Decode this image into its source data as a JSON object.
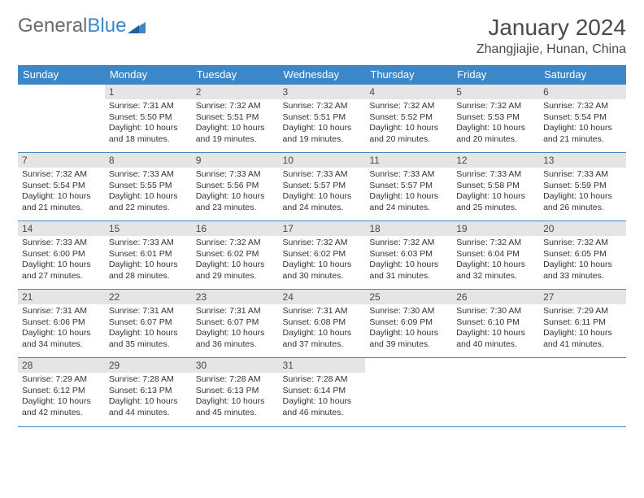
{
  "logo": {
    "word1": "General",
    "word2": "Blue"
  },
  "title": "January 2024",
  "location": "Zhangjiajie, Hunan, China",
  "day_names": [
    "Sunday",
    "Monday",
    "Tuesday",
    "Wednesday",
    "Thursday",
    "Friday",
    "Saturday"
  ],
  "colors": {
    "accent": "#3b87c8",
    "daynum_bg": "#e5e5e5",
    "text": "#333333",
    "title": "#4a4a4a"
  },
  "fonts": {
    "title_size": 28,
    "location_size": 16,
    "header_size": 13,
    "daynum_size": 12,
    "body_size": 10.5
  },
  "weeks": [
    [
      null,
      {
        "n": "1",
        "sr": "Sunrise: 7:31 AM",
        "ss": "Sunset: 5:50 PM",
        "dl": "Daylight: 10 hours and 18 minutes."
      },
      {
        "n": "2",
        "sr": "Sunrise: 7:32 AM",
        "ss": "Sunset: 5:51 PM",
        "dl": "Daylight: 10 hours and 19 minutes."
      },
      {
        "n": "3",
        "sr": "Sunrise: 7:32 AM",
        "ss": "Sunset: 5:51 PM",
        "dl": "Daylight: 10 hours and 19 minutes."
      },
      {
        "n": "4",
        "sr": "Sunrise: 7:32 AM",
        "ss": "Sunset: 5:52 PM",
        "dl": "Daylight: 10 hours and 20 minutes."
      },
      {
        "n": "5",
        "sr": "Sunrise: 7:32 AM",
        "ss": "Sunset: 5:53 PM",
        "dl": "Daylight: 10 hours and 20 minutes."
      },
      {
        "n": "6",
        "sr": "Sunrise: 7:32 AM",
        "ss": "Sunset: 5:54 PM",
        "dl": "Daylight: 10 hours and 21 minutes."
      }
    ],
    [
      {
        "n": "7",
        "sr": "Sunrise: 7:32 AM",
        "ss": "Sunset: 5:54 PM",
        "dl": "Daylight: 10 hours and 21 minutes."
      },
      {
        "n": "8",
        "sr": "Sunrise: 7:33 AM",
        "ss": "Sunset: 5:55 PM",
        "dl": "Daylight: 10 hours and 22 minutes."
      },
      {
        "n": "9",
        "sr": "Sunrise: 7:33 AM",
        "ss": "Sunset: 5:56 PM",
        "dl": "Daylight: 10 hours and 23 minutes."
      },
      {
        "n": "10",
        "sr": "Sunrise: 7:33 AM",
        "ss": "Sunset: 5:57 PM",
        "dl": "Daylight: 10 hours and 24 minutes."
      },
      {
        "n": "11",
        "sr": "Sunrise: 7:33 AM",
        "ss": "Sunset: 5:57 PM",
        "dl": "Daylight: 10 hours and 24 minutes."
      },
      {
        "n": "12",
        "sr": "Sunrise: 7:33 AM",
        "ss": "Sunset: 5:58 PM",
        "dl": "Daylight: 10 hours and 25 minutes."
      },
      {
        "n": "13",
        "sr": "Sunrise: 7:33 AM",
        "ss": "Sunset: 5:59 PM",
        "dl": "Daylight: 10 hours and 26 minutes."
      }
    ],
    [
      {
        "n": "14",
        "sr": "Sunrise: 7:33 AM",
        "ss": "Sunset: 6:00 PM",
        "dl": "Daylight: 10 hours and 27 minutes."
      },
      {
        "n": "15",
        "sr": "Sunrise: 7:33 AM",
        "ss": "Sunset: 6:01 PM",
        "dl": "Daylight: 10 hours and 28 minutes."
      },
      {
        "n": "16",
        "sr": "Sunrise: 7:32 AM",
        "ss": "Sunset: 6:02 PM",
        "dl": "Daylight: 10 hours and 29 minutes."
      },
      {
        "n": "17",
        "sr": "Sunrise: 7:32 AM",
        "ss": "Sunset: 6:02 PM",
        "dl": "Daylight: 10 hours and 30 minutes."
      },
      {
        "n": "18",
        "sr": "Sunrise: 7:32 AM",
        "ss": "Sunset: 6:03 PM",
        "dl": "Daylight: 10 hours and 31 minutes."
      },
      {
        "n": "19",
        "sr": "Sunrise: 7:32 AM",
        "ss": "Sunset: 6:04 PM",
        "dl": "Daylight: 10 hours and 32 minutes."
      },
      {
        "n": "20",
        "sr": "Sunrise: 7:32 AM",
        "ss": "Sunset: 6:05 PM",
        "dl": "Daylight: 10 hours and 33 minutes."
      }
    ],
    [
      {
        "n": "21",
        "sr": "Sunrise: 7:31 AM",
        "ss": "Sunset: 6:06 PM",
        "dl": "Daylight: 10 hours and 34 minutes."
      },
      {
        "n": "22",
        "sr": "Sunrise: 7:31 AM",
        "ss": "Sunset: 6:07 PM",
        "dl": "Daylight: 10 hours and 35 minutes."
      },
      {
        "n": "23",
        "sr": "Sunrise: 7:31 AM",
        "ss": "Sunset: 6:07 PM",
        "dl": "Daylight: 10 hours and 36 minutes."
      },
      {
        "n": "24",
        "sr": "Sunrise: 7:31 AM",
        "ss": "Sunset: 6:08 PM",
        "dl": "Daylight: 10 hours and 37 minutes."
      },
      {
        "n": "25",
        "sr": "Sunrise: 7:30 AM",
        "ss": "Sunset: 6:09 PM",
        "dl": "Daylight: 10 hours and 39 minutes."
      },
      {
        "n": "26",
        "sr": "Sunrise: 7:30 AM",
        "ss": "Sunset: 6:10 PM",
        "dl": "Daylight: 10 hours and 40 minutes."
      },
      {
        "n": "27",
        "sr": "Sunrise: 7:29 AM",
        "ss": "Sunset: 6:11 PM",
        "dl": "Daylight: 10 hours and 41 minutes."
      }
    ],
    [
      {
        "n": "28",
        "sr": "Sunrise: 7:29 AM",
        "ss": "Sunset: 6:12 PM",
        "dl": "Daylight: 10 hours and 42 minutes."
      },
      {
        "n": "29",
        "sr": "Sunrise: 7:28 AM",
        "ss": "Sunset: 6:13 PM",
        "dl": "Daylight: 10 hours and 44 minutes."
      },
      {
        "n": "30",
        "sr": "Sunrise: 7:28 AM",
        "ss": "Sunset: 6:13 PM",
        "dl": "Daylight: 10 hours and 45 minutes."
      },
      {
        "n": "31",
        "sr": "Sunrise: 7:28 AM",
        "ss": "Sunset: 6:14 PM",
        "dl": "Daylight: 10 hours and 46 minutes."
      },
      null,
      null,
      null
    ]
  ]
}
